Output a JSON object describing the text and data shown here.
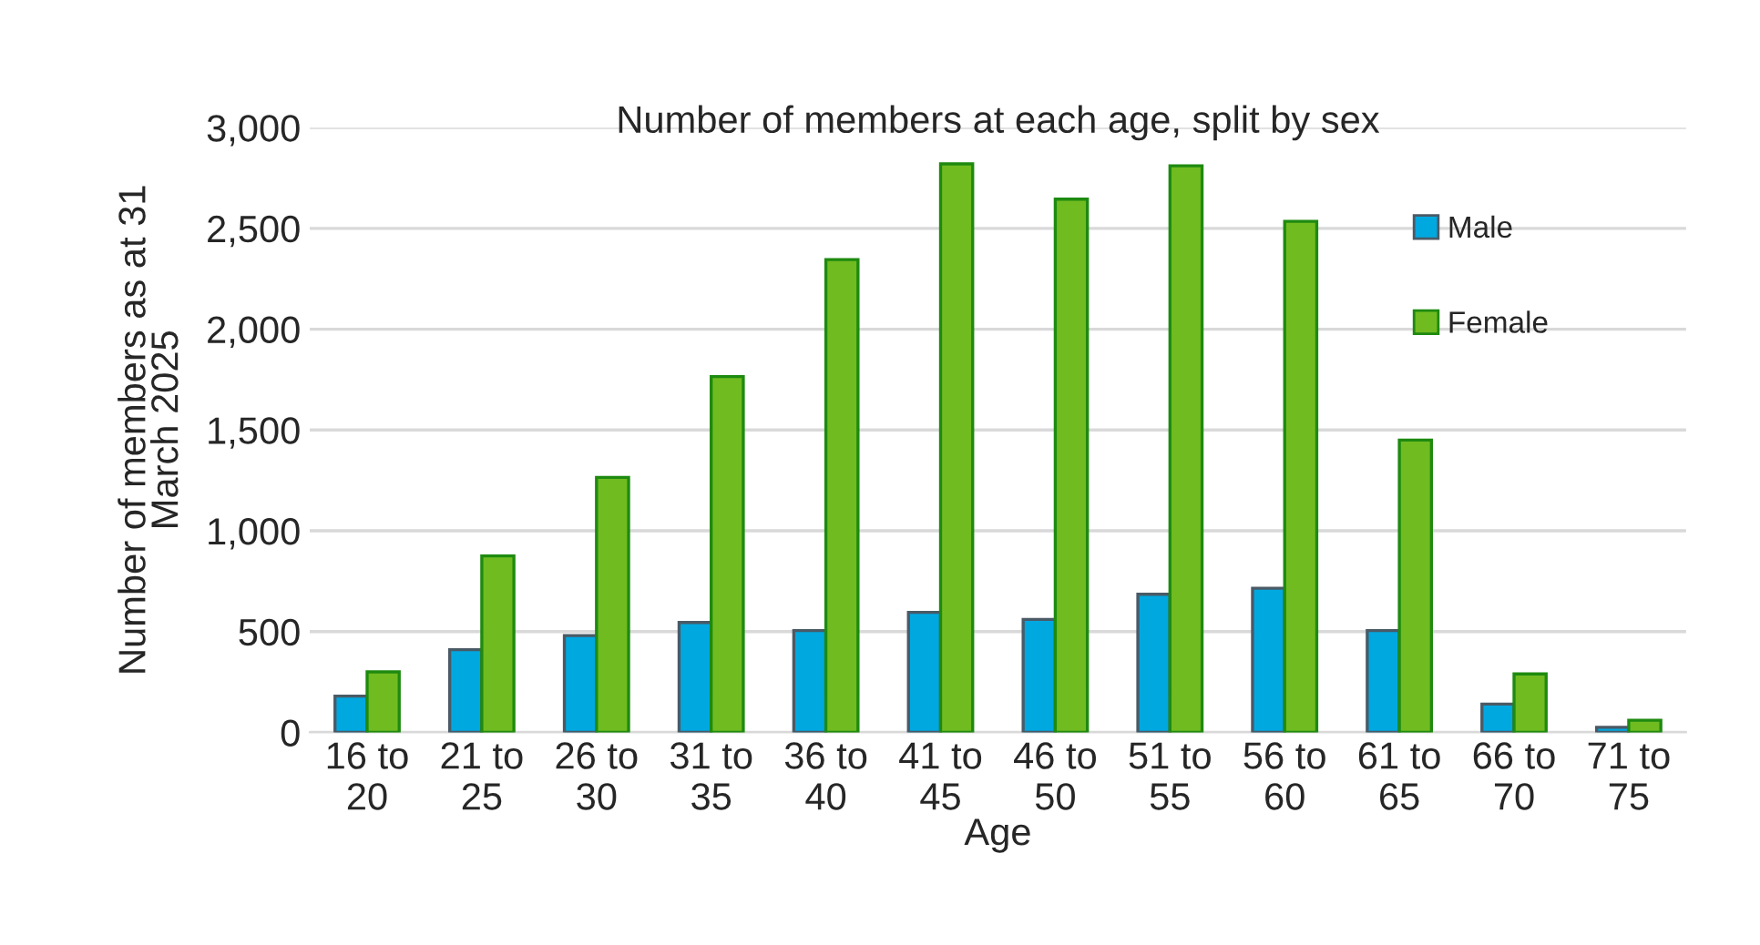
{
  "chart_data": {
    "type": "bar",
    "title": "Number of members at each age, split by sex",
    "xlabel": "Age",
    "ylabel": "Number of members as at 31\nMarch 2025",
    "categories": [
      "16 to\n20",
      "21 to\n25",
      "26 to\n30",
      "31 to\n35",
      "36 to\n40",
      "41 to\n45",
      "46 to\n50",
      "51 to\n55",
      "56 to\n60",
      "61 to\n65",
      "66 to\n70",
      "71 to\n75"
    ],
    "series": [
      {
        "name": "Male",
        "color": "#00a8e0",
        "values": [
          180,
          410,
          480,
          545,
          505,
          595,
          560,
          685,
          715,
          505,
          140,
          25
        ]
      },
      {
        "name": "Female",
        "color": "#70bb20",
        "values": [
          300,
          875,
          1265,
          1765,
          2345,
          2820,
          2645,
          2810,
          2535,
          1450,
          290,
          60
        ]
      }
    ],
    "ylim": [
      0,
      3000
    ],
    "yticks": [
      0,
      500,
      {
        "value": 1000,
        "label": "1,000"
      },
      {
        "value": 1500,
        "label": "1,500"
      },
      {
        "value": 2000,
        "label": "2,000"
      },
      {
        "value": 2500,
        "label": "2,500"
      },
      {
        "value": 3000,
        "label": "3,000"
      }
    ],
    "grid": "y",
    "legend": "top right"
  }
}
